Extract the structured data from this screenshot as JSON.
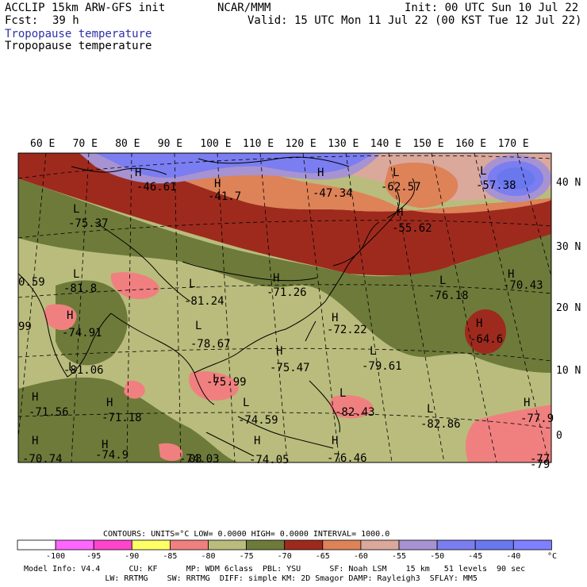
{
  "header": {
    "model": "ACCLIP 15km ARW-GFS init",
    "org": "NCAR/MMM",
    "init": "Init: 00 UTC Sun 10 Jul 22",
    "fcst_label": "Fcst:",
    "fcst_value": "39 h",
    "valid": "Valid: 15 UTC Mon 11 Jul 22 (00 KST Tue 12 Jul 22)",
    "field_title_1": "Tropopause temperature",
    "field_title_2": "Tropopause temperature"
  },
  "axes": {
    "lon_labels": [
      "60 E",
      "70 E",
      "80 E",
      "90 E",
      "100 E",
      "110 E",
      "120 E",
      "130 E",
      "140 E",
      "150 E",
      "160 E",
      "170 E"
    ],
    "lat_labels": [
      "40 N",
      "30 N",
      "20 N",
      "10 N",
      "0"
    ]
  },
  "map_labels": [
    {
      "marker": "H",
      "value": "-46.61"
    },
    {
      "marker": "H",
      "value": "-41.7"
    },
    {
      "marker": "H",
      "value": "-47.34"
    },
    {
      "marker": "L",
      "value": "-62.57"
    },
    {
      "marker": "L",
      "value": "-57.38"
    },
    {
      "marker": "L",
      "value": "-75.37"
    },
    {
      "marker": "H",
      "value": "-55.62"
    },
    {
      "marker": "L",
      "value": "-81.8"
    },
    {
      "marker": "L",
      "value": "-81.24"
    },
    {
      "marker": "H",
      "value": "-71.26"
    },
    {
      "marker": "L",
      "value": "-76.18"
    },
    {
      "marker": "H",
      "value": "-70.43"
    },
    {
      "marker": "H",
      "value": "-74.91"
    },
    {
      "marker": "L",
      "value": "-78.67"
    },
    {
      "marker": "H",
      "value": "-72.22"
    },
    {
      "marker": "H",
      "value": "-64.6"
    },
    {
      "marker": "H",
      "value": "-75.47"
    },
    {
      "marker": "L",
      "value": "-79.61"
    },
    {
      "marker": "L",
      "value": "-81.06"
    },
    {
      "marker": "L",
      "value": "-75.99"
    },
    {
      "marker": "H",
      "value": "-71.56"
    },
    {
      "marker": "H",
      "value": "-71.18"
    },
    {
      "marker": "L",
      "value": "-74.59"
    },
    {
      "marker": "L",
      "value": "-82.43"
    },
    {
      "marker": "L",
      "value": "-82.86"
    },
    {
      "marker": "H",
      "value": "-77.9"
    },
    {
      "marker": "H",
      "value": "-70.74"
    },
    {
      "marker": "H",
      "value": "-74.9"
    },
    {
      "marker": "",
      "value": "-74.03"
    },
    {
      "marker": "H",
      "value": "-74.05"
    },
    {
      "marker": "H",
      "value": "-76.46"
    },
    {
      "marker": "",
      "value": "-77"
    },
    {
      "marker": "",
      "value": "-79"
    },
    {
      "marker": "",
      "value": "0.59"
    },
    {
      "marker": "",
      "value": "99"
    },
    {
      "marker": "",
      "value": "03"
    }
  ],
  "contours": {
    "text": "CONTOURS:  UNITS=°C  LOW=  0.0000      HIGH=  0.0000      INTERVAL=   1000.0"
  },
  "colors": {
    "lt_m100": "#ffffff",
    "m100_m95": "#ff66ff",
    "m95_m90": "#ff44cc",
    "m90_m85": "#ffff66",
    "m85_m80": "#f08080",
    "m80_m75": "#b9bc7c",
    "m75_m70": "#6d7a3a",
    "m70_m65": "#9e2a1e",
    "m65_m60": "#de8258",
    "m60_m55": "#dba89c",
    "m55_m50": "#a793d1",
    "m50_m45": "#7b7ef0",
    "m45_m40": "#6a78ee",
    "gt_m40": "#7f80ff"
  },
  "legend": {
    "tick_labels": [
      "-100",
      "-95",
      "-90",
      "-85",
      "-80",
      "-75",
      "-70",
      "-65",
      "-60",
      "-55",
      "-50",
      "-45",
      "-40"
    ],
    "unit": "°C"
  },
  "footer": {
    "line1": "Model Info: V4.4      CU: KF      MP: WDM 6class  PBL: YSU      SF: Noah LSM    15 km   51 levels  90 sec",
    "line2": "                 LW: RRTMG    SW: RRTMG  DIFF: simple KM: 2D Smagor DAMP: Rayleigh3  SFLAY: MM5"
  }
}
